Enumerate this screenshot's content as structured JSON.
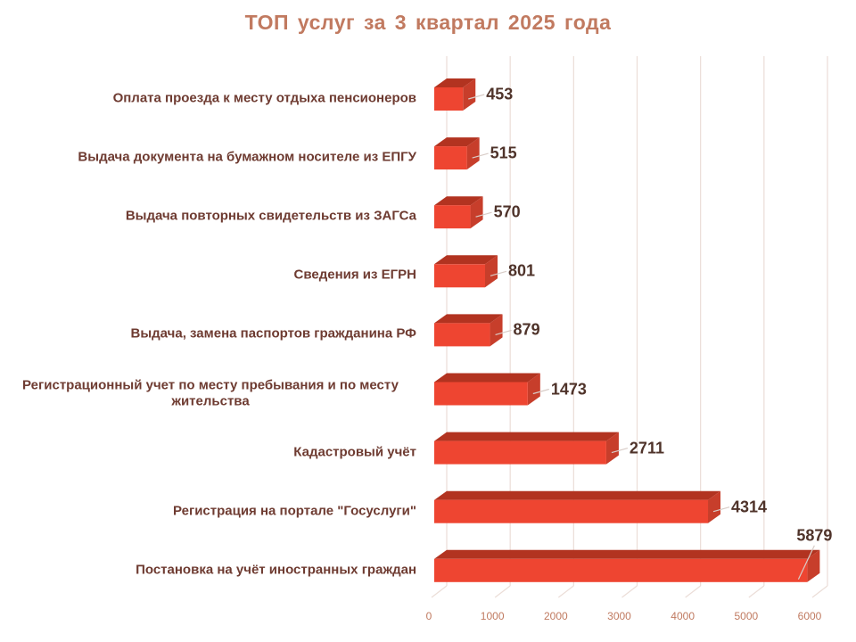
{
  "chart_data": {
    "type": "bar",
    "orientation": "horizontal",
    "style": "3d",
    "title": "ТОП услуг за 3 квартал 2025 года",
    "categories": [
      "Оплата проезда к месту отдыха пенсионеров",
      "Выдача документа на бумажном носителе из ЕПГУ",
      "Выдача повторных свидетельств из ЗАГСа",
      "Сведения из ЕГРН",
      "Выдача, замена паспортов гражданина РФ",
      "Регистрационный учет по месту пребывания и по месту жительства",
      "Кадастровый учёт",
      "Регистрация на портале \"Госуслуги\"",
      "Постановка на учёт иностранных граждан"
    ],
    "values": [
      453,
      515,
      570,
      801,
      879,
      1473,
      2711,
      4314,
      5879
    ],
    "value_labels": [
      "453",
      "515",
      "570",
      "801",
      "879",
      "1473",
      "2711",
      "4314",
      "5879"
    ],
    "xlabel": "",
    "ylabel": "",
    "xlim": [
      0,
      6000
    ],
    "x_ticks": [
      0,
      1000,
      2000,
      3000,
      4000,
      5000,
      6000
    ],
    "grid": true,
    "legend": false,
    "colors": {
      "bar_front": "#EE4531",
      "bar_top": "#B23320",
      "bar_side": "#C73E2B",
      "title_text": "#C17A60",
      "category_text": "#6E3B31",
      "value_text": "#4F332A",
      "tick_text": "#C07A60",
      "gridline": "#EBDDD7",
      "leader_line": "#D8CCC7",
      "background": "#FFFFFF"
    }
  }
}
